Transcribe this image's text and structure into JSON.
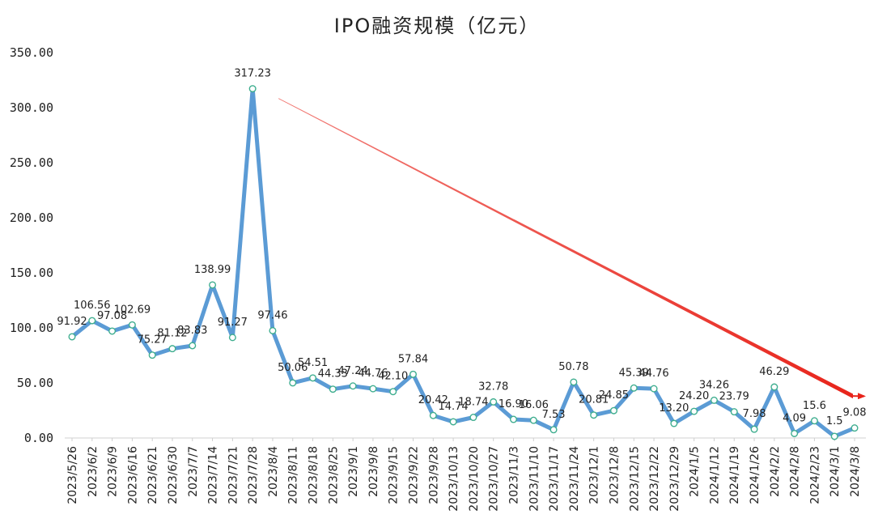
{
  "chart_data": {
    "type": "line",
    "title": "IPO融资规模（亿元）",
    "xlabel": "",
    "ylabel": "",
    "ylim": [
      0,
      350
    ],
    "yticks": [
      "0.00",
      "50.00",
      "100.00",
      "150.00",
      "200.00",
      "250.00",
      "300.00",
      "350.00"
    ],
    "grid": false,
    "categories": [
      "2023/5/26",
      "2023/6/2",
      "2023/6/9",
      "2023/6/16",
      "2023/6/21",
      "2023/6/30",
      "2023/7/7",
      "2023/7/14",
      "2023/7/21",
      "2023/7/28",
      "2023/8/4",
      "2023/8/11",
      "2023/8/18",
      "2023/8/25",
      "2023/9/1",
      "2023/9/8",
      "2023/9/15",
      "2023/9/22",
      "2023/9/28",
      "2023/10/13",
      "2023/10/20",
      "2023/10/27",
      "2023/11/3",
      "2023/11/10",
      "2023/11/17",
      "2023/11/24",
      "2023/12/1",
      "2023/12/8",
      "2023/12/15",
      "2023/12/22",
      "2023/12/29",
      "2024/1/5",
      "2024/1/12",
      "2024/1/19",
      "2024/1/26",
      "2024/2/2",
      "2024/2/8",
      "2024/2/23",
      "2024/3/1",
      "2024/3/8"
    ],
    "series": [
      {
        "name": "IPO融资规模",
        "color": "#5B9BD5",
        "values": [
          91.92,
          106.56,
          97.08,
          102.69,
          75.27,
          81.12,
          83.83,
          138.99,
          91.27,
          317.23,
          97.46,
          50.06,
          54.51,
          44.33,
          47.24,
          44.76,
          42.1,
          57.84,
          20.42,
          14.74,
          18.74,
          32.78,
          16.9,
          16.06,
          7.53,
          50.78,
          20.81,
          24.85,
          45.39,
          44.76,
          13.2,
          24.2,
          34.26,
          23.79,
          7.98,
          46.29,
          4.09,
          15.6,
          1.5,
          9.08
        ],
        "labels": [
          "91.92",
          "106.56",
          "97.08",
          "102.69",
          "75.27",
          "81.12",
          "83.83",
          "138.99",
          "91.27",
          "317.23",
          "97.46",
          "50.06",
          "54.51",
          "44.33",
          "47.24",
          "44.76",
          "42.10",
          "57.84",
          "20.42",
          "14.74",
          "18.74",
          "32.78",
          "16.90",
          "16.06",
          "7.53",
          "50.78",
          "20.81",
          "24.85",
          "45.39",
          "44.76",
          "13.20",
          "24.20",
          "34.26",
          "23.79",
          "7.98",
          "46.29",
          "4.09",
          "15.6",
          "1.5",
          "9.08"
        ]
      }
    ],
    "annotations": [
      {
        "type": "arrow",
        "color": "#E8231A",
        "from": [
          "2023/7/28",
          317.23
        ],
        "to": [
          "2024/3/8",
          38
        ]
      }
    ]
  }
}
